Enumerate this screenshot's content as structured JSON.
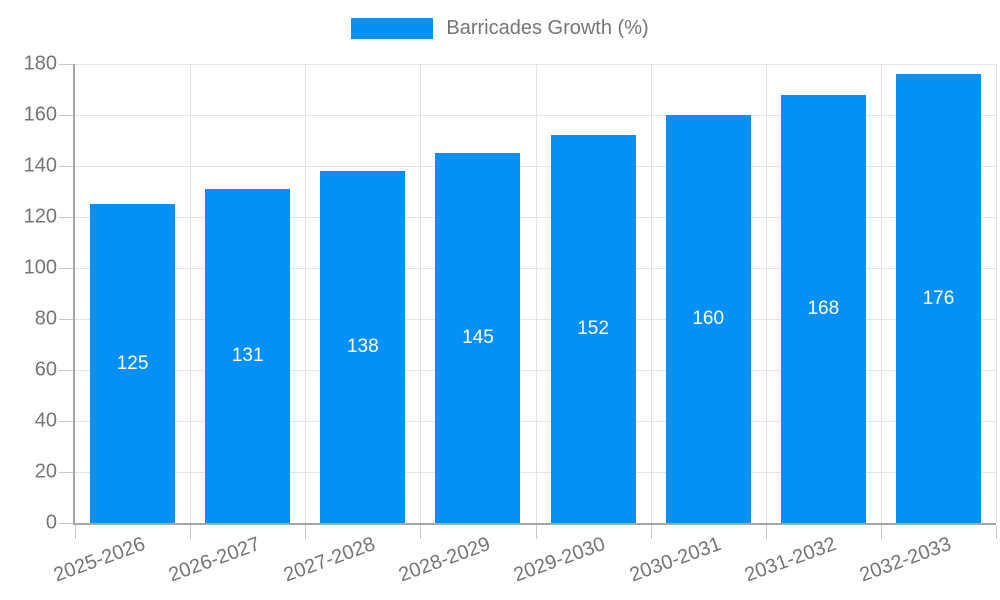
{
  "legend": {
    "label": "Barricades Growth (%)"
  },
  "chart_data": {
    "type": "bar",
    "title": "Barricades Growth (%)",
    "categories": [
      "2025-2026",
      "2026-2027",
      "2027-2028",
      "2028-2029",
      "2029-2030",
      "2030-2031",
      "2031-2032",
      "2032-2033"
    ],
    "values": [
      125,
      131,
      138,
      145,
      152,
      160,
      168,
      176
    ],
    "xlabel": "",
    "ylabel": "",
    "ylim": [
      0,
      180
    ],
    "ytick_step": 20,
    "yticks": [
      0,
      20,
      40,
      60,
      80,
      100,
      120,
      140,
      160,
      180
    ],
    "grid": true,
    "legend_position": "top-center",
    "value_labels": "inside-center",
    "colors": {
      "bar_fill": "#0590f8",
      "grid_line": "#e3e3e3",
      "axis_line": "#a6a6a6",
      "tick_mark": "#c7c7c7",
      "axis_text": "#757575",
      "value_label_text": "#ffffff",
      "background": "#ffffff"
    }
  }
}
